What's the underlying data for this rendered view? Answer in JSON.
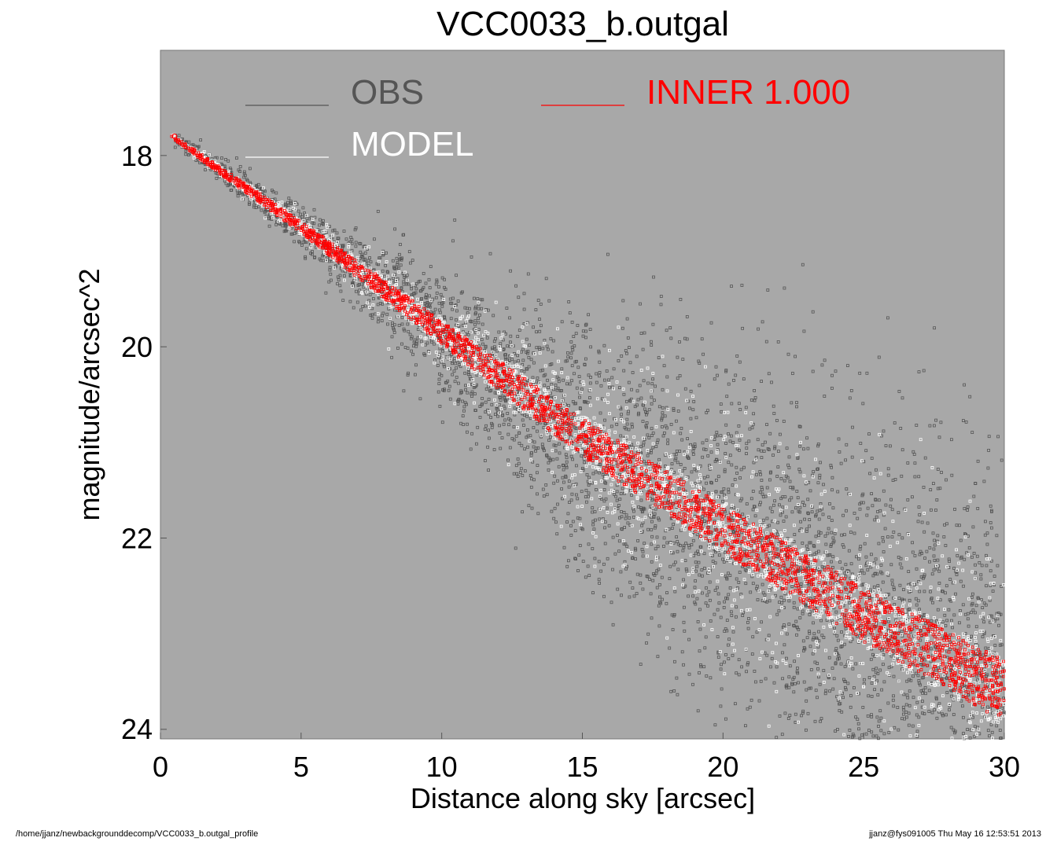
{
  "chart_data": {
    "type": "scatter",
    "title": "VCC0033_b.outgal",
    "xlabel": "Distance along sky [arcsec]",
    "ylabel": "magnitude/arcsec^2",
    "xlim": [
      0,
      30
    ],
    "ylim": [
      24.1,
      16.9
    ],
    "y_inverted": true,
    "xticks": [
      "0",
      "5",
      "10",
      "15",
      "20",
      "25",
      "30"
    ],
    "yticks": [
      "18",
      "20",
      "22",
      "24"
    ],
    "plot_background": "#a8a8a8",
    "grid": false,
    "legend_placement": "top",
    "series": [
      {
        "name": "OBS",
        "color": "#555555",
        "marker": "open-square",
        "trend_x": [
          0.4,
          5,
          10,
          15,
          20,
          25,
          30
        ],
        "trend_y": [
          17.8,
          18.75,
          19.85,
          20.95,
          21.9,
          22.8,
          23.6
        ],
        "scatter_sigma_x": [
          0.4,
          5,
          10,
          15,
          20,
          25,
          30
        ],
        "scatter_sigma_y": [
          0.03,
          0.12,
          0.35,
          0.65,
          0.9,
          1.05,
          1.15
        ]
      },
      {
        "name": "MODEL",
        "color": "#ffffff",
        "marker": "open-square",
        "trend_x": [
          0.4,
          5,
          10,
          15,
          20,
          25,
          30
        ],
        "trend_y": [
          17.8,
          18.75,
          19.85,
          20.95,
          21.9,
          22.8,
          23.6
        ],
        "band_halfwidth": [
          0.02,
          0.08,
          0.15,
          0.25,
          0.3,
          0.35,
          0.4
        ]
      },
      {
        "name": "INNER  1.000",
        "color": "#ff0000",
        "marker": "open-square",
        "trend_x": [
          0.4,
          5,
          10,
          15,
          20,
          25,
          30
        ],
        "trend_y": [
          17.8,
          18.75,
          19.85,
          20.95,
          21.9,
          22.8,
          23.6
        ],
        "band_halfwidth": [
          0.02,
          0.06,
          0.12,
          0.2,
          0.24,
          0.28,
          0.32
        ]
      }
    ]
  },
  "footer": {
    "left": "/home/jjanz/newbackgrounddecomp/VCC0033_b.outgal_profile",
    "right": "jjanz@fys091005  Thu May 16 12:53:51 2013"
  }
}
